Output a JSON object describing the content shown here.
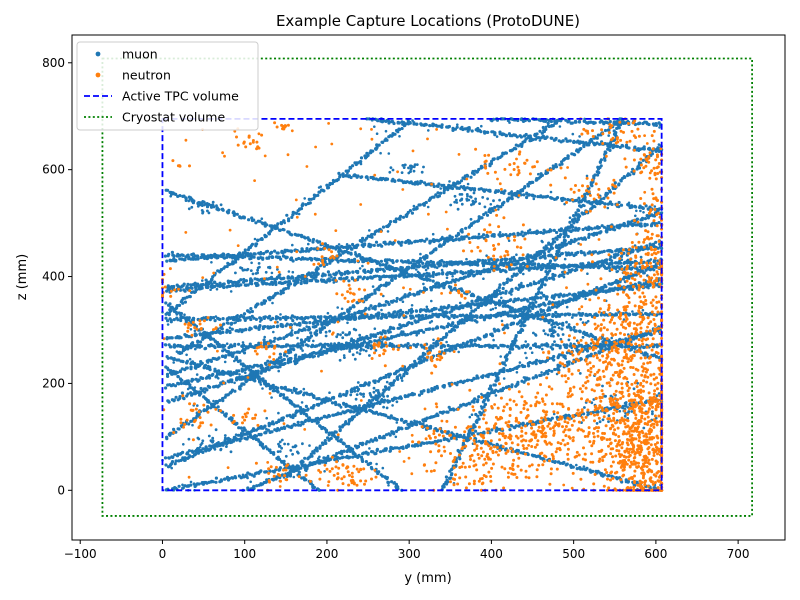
{
  "chart_data": {
    "type": "scatter",
    "title": "Example Capture Locations (ProtoDUNE)",
    "xlabel": "y (mm)",
    "ylabel": "z (mm)",
    "xlim": [
      -110,
      757
    ],
    "ylim": [
      -93,
      852
    ],
    "x_ticks": [
      -100,
      0,
      100,
      200,
      300,
      400,
      500,
      600,
      700
    ],
    "y_ticks": [
      0,
      200,
      400,
      600,
      800
    ],
    "x_tick_labels": [
      "−100",
      "0",
      "100",
      "200",
      "300",
      "400",
      "500",
      "600",
      "700"
    ],
    "y_tick_labels": [
      "0",
      "200",
      "400",
      "600",
      "800"
    ],
    "grid": false,
    "legend_position": "upper-left",
    "legend": [
      "muon",
      "neutron",
      "Active TPC volume",
      "Cryostat volume"
    ],
    "colors": {
      "muon": "#1f77b4",
      "neutron": "#ff7f0e",
      "tpc": "#0000ff",
      "cryostat": "#008000"
    },
    "active_tpc_volume": {
      "y": [
        0,
        607
      ],
      "z": [
        0,
        695
      ]
    },
    "cryostat_volume": {
      "y": [
        -73,
        717
      ],
      "z": [
        -48,
        808
      ]
    },
    "muon_tracks": [
      [
        [
          5,
          560
        ],
        [
          607,
          245
        ]
      ],
      [
        [
          5,
          440
        ],
        [
          607,
          415
        ]
      ],
      [
        [
          5,
          375
        ],
        [
          607,
          430
        ]
      ],
      [
        [
          5,
          320
        ],
        [
          607,
          330
        ]
      ],
      [
        [
          5,
          270
        ],
        [
          607,
          270
        ]
      ],
      [
        [
          5,
          215
        ],
        [
          607,
          520
        ]
      ],
      [
        [
          5,
          165
        ],
        [
          607,
          465
        ]
      ],
      [
        [
          5,
          45
        ],
        [
          607,
          425
        ]
      ],
      [
        [
          5,
          0
        ],
        [
          607,
          170
        ]
      ],
      [
        [
          5,
          100
        ],
        [
          560,
          695
        ]
      ],
      [
        [
          20,
          255
        ],
        [
          480,
          690
        ]
      ],
      [
        [
          5,
          330
        ],
        [
          300,
          690
        ]
      ],
      [
        [
          150,
          25
        ],
        [
          607,
          645
        ]
      ],
      [
        [
          5,
          430
        ],
        [
          607,
          500
        ]
      ],
      [
        [
          5,
          350
        ],
        [
          290,
          0
        ]
      ],
      [
        [
          5,
          250
        ],
        [
          607,
          0
        ]
      ],
      [
        [
          190,
          0
        ],
        [
          5,
          230
        ]
      ],
      [
        [
          220,
          590
        ],
        [
          607,
          525
        ]
      ],
      [
        [
          250,
          695
        ],
        [
          607,
          635
        ]
      ],
      [
        [
          400,
          695
        ],
        [
          607,
          685
        ]
      ],
      [
        [
          340,
          0
        ],
        [
          560,
          695
        ]
      ],
      [
        [
          5,
          285
        ],
        [
          607,
          385
        ]
      ],
      [
        [
          5,
          195
        ],
        [
          607,
          395
        ]
      ],
      [
        [
          5,
          60
        ],
        [
          607,
          300
        ]
      ],
      [
        [
          100,
          0
        ],
        [
          607,
          305
        ]
      ],
      [
        [
          5,
          380
        ],
        [
          607,
          455
        ]
      ]
    ],
    "muon_clusters": [
      [
        [
          45,
          535
        ],
        10,
        8,
        25
      ],
      [
        [
          110,
          415
        ],
        12,
        6,
        20
      ],
      [
        [
          220,
          275
        ],
        22,
        18,
        70
      ],
      [
        [
          250,
          170
        ],
        18,
        14,
        50
      ],
      [
        [
          380,
          540
        ],
        14,
        12,
        40
      ],
      [
        [
          560,
          155
        ],
        22,
        20,
        60
      ],
      [
        [
          480,
          300
        ],
        15,
        12,
        40
      ],
      [
        [
          60,
          90
        ],
        12,
        10,
        30
      ],
      [
        [
          300,
          600
        ],
        10,
        10,
        25
      ],
      [
        [
          560,
          420
        ],
        14,
        12,
        30
      ],
      [
        [
          150,
          80
        ],
        10,
        8,
        20
      ]
    ],
    "neutron_clusters": [
      [
        [
          585,
          80
        ],
        22,
        70,
        450
      ],
      [
        [
          560,
          150
        ],
        40,
        70,
        420
      ],
      [
        [
          540,
          260
        ],
        30,
        40,
        140
      ],
      [
        [
          590,
          420
        ],
        18,
        40,
        110
      ],
      [
        [
          580,
          330
        ],
        30,
        50,
        120
      ],
      [
        [
          430,
          100
        ],
        40,
        40,
        200
      ],
      [
        [
          380,
          40
        ],
        25,
        25,
        60
      ],
      [
        [
          460,
          130
        ],
        25,
        30,
        80
      ],
      [
        [
          330,
          95
        ],
        15,
        20,
        30
      ],
      [
        [
          220,
          30
        ],
        20,
        15,
        50
      ],
      [
        [
          140,
          30
        ],
        15,
        15,
        20
      ],
      [
        [
          590,
          610
        ],
        15,
        15,
        40
      ],
      [
        [
          550,
          670
        ],
        20,
        20,
        40
      ],
      [
        [
          430,
          610
        ],
        25,
        15,
        30
      ],
      [
        [
          410,
          460
        ],
        20,
        25,
        40
      ],
      [
        [
          330,
          250
        ],
        8,
        15,
        20
      ],
      [
        [
          270,
          270
        ],
        10,
        12,
        20
      ],
      [
        [
          235,
          370
        ],
        12,
        12,
        20
      ],
      [
        [
          200,
          440
        ],
        10,
        10,
        15
      ],
      [
        [
          110,
          650
        ],
        10,
        8,
        15
      ],
      [
        [
          145,
          680
        ],
        6,
        6,
        10
      ],
      [
        [
          45,
          310
        ],
        12,
        10,
        20
      ],
      [
        [
          30,
          140
        ],
        12,
        15,
        25
      ],
      [
        [
          100,
          140
        ],
        10,
        10,
        15
      ],
      [
        [
          125,
          260
        ],
        10,
        10,
        15
      ],
      [
        [
          520,
          560
        ],
        20,
        20,
        30
      ],
      [
        [
          360,
          370
        ],
        8,
        8,
        10
      ],
      [
        [
          20,
          610
        ],
        5,
        5,
        5
      ],
      [
        [
          5,
          380
        ],
        6,
        20,
        15
      ],
      [
        [
          600,
          520
        ],
        10,
        40,
        40
      ]
    ]
  }
}
